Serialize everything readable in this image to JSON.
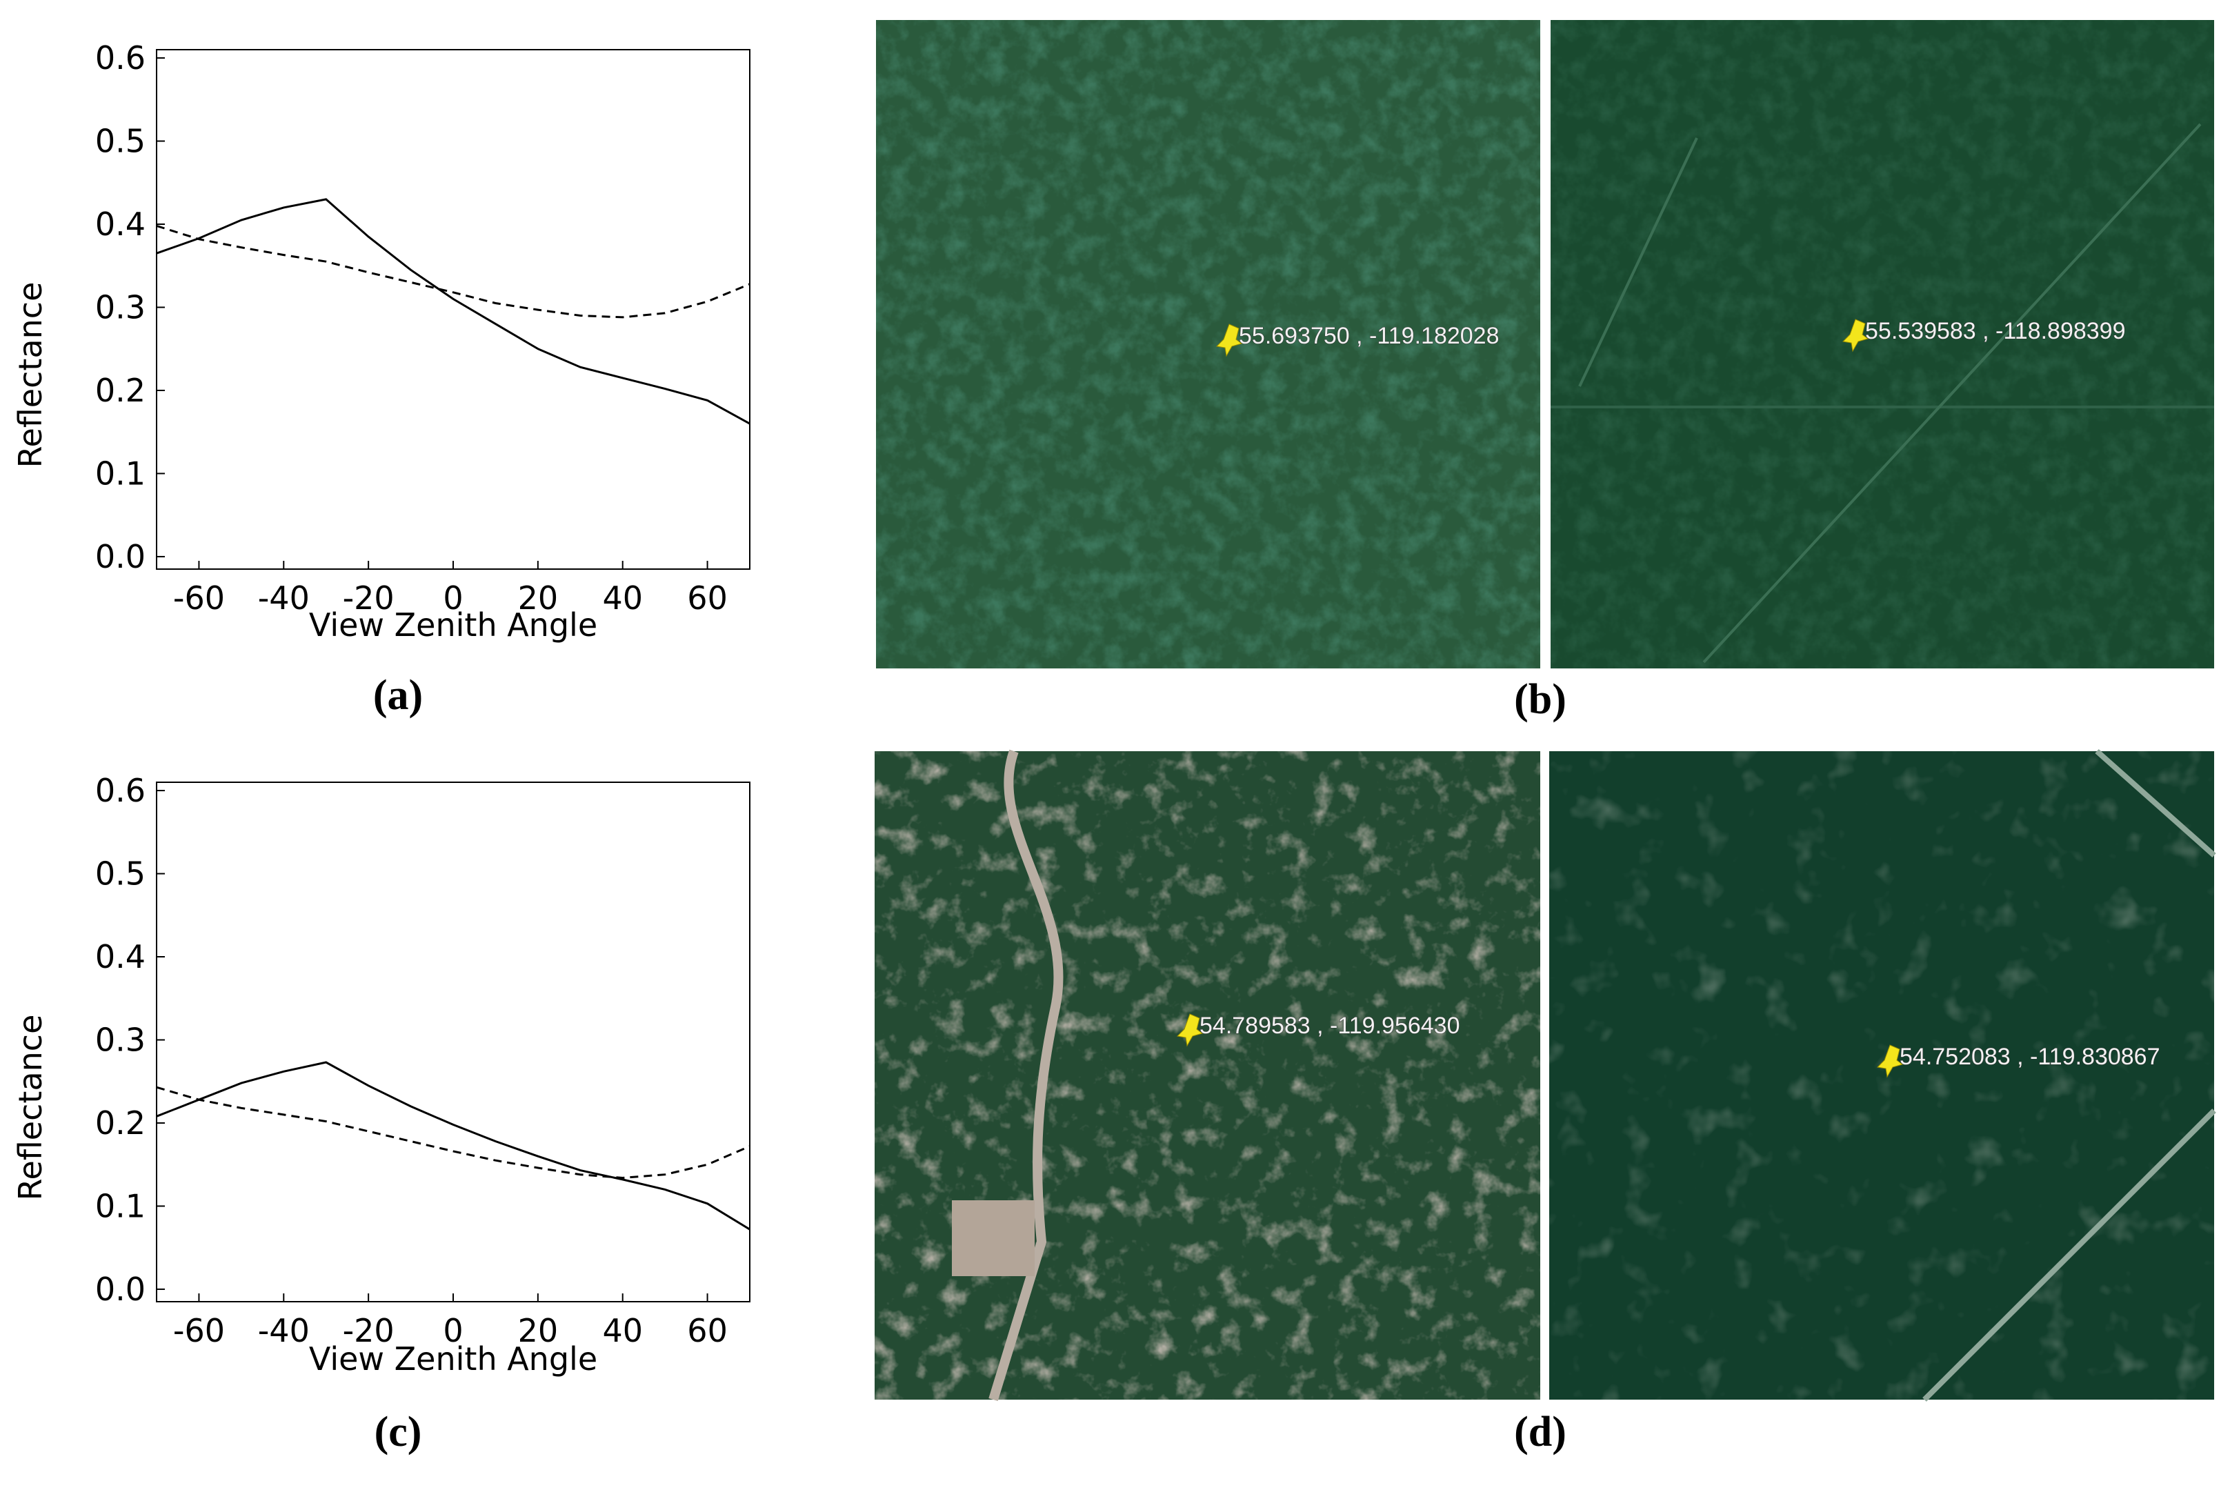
{
  "chart_data": [
    {
      "type": "line",
      "caption": "(a)",
      "xlabel": "View Zenith Angle",
      "ylabel": "Reflectance",
      "x": [
        -70,
        -60,
        -50,
        -40,
        -30,
        -20,
        -10,
        0,
        10,
        20,
        30,
        40,
        50,
        60,
        70
      ],
      "series": [
        {
          "color": "#000000",
          "line_style": "solid",
          "values": [
            0.365,
            0.383,
            0.405,
            0.42,
            0.43,
            0.385,
            0.345,
            0.31,
            0.28,
            0.25,
            0.228,
            0.215,
            0.202,
            0.188,
            0.16
          ]
        },
        {
          "color": "#000000",
          "line_style": "dashed",
          "values": [
            0.398,
            0.382,
            0.372,
            0.363,
            0.355,
            0.342,
            0.33,
            0.318,
            0.305,
            0.297,
            0.29,
            0.288,
            0.293,
            0.307,
            0.328
          ]
        }
      ],
      "xlim": [
        -70,
        70
      ],
      "xticks": [
        -60,
        -40,
        -20,
        0,
        20,
        40,
        60
      ],
      "ylim": [
        -0.015,
        0.61
      ],
      "yticks": [
        {
          "value": 0,
          "label": "0.0"
        },
        0.1,
        0.2,
        0.3,
        0.4,
        0.5,
        0.6
      ]
    },
    {
      "type": "line",
      "caption": "(c)",
      "xlabel": "View Zenith Angle",
      "ylabel": "Reflectance",
      "x": [
        -70,
        -60,
        -50,
        -40,
        -30,
        -20,
        -10,
        0,
        10,
        20,
        30,
        40,
        50,
        60,
        70
      ],
      "series": [
        {
          "color": "#000000",
          "line_style": "solid",
          "values": [
            0.208,
            0.228,
            0.248,
            0.262,
            0.273,
            0.245,
            0.22,
            0.198,
            0.178,
            0.16,
            0.143,
            0.132,
            0.12,
            0.103,
            0.072
          ]
        },
        {
          "color": "#000000",
          "line_style": "dashed",
          "values": [
            0.243,
            0.228,
            0.218,
            0.21,
            0.202,
            0.19,
            0.178,
            0.166,
            0.155,
            0.146,
            0.138,
            0.134,
            0.138,
            0.15,
            0.172
          ]
        }
      ],
      "xlim": [
        -70,
        70
      ],
      "xticks": [
        -60,
        -40,
        -20,
        0,
        20,
        40,
        60
      ],
      "ylim": [
        -0.015,
        0.61
      ],
      "yticks": [
        {
          "value": 0,
          "label": "0.0"
        },
        0.1,
        0.2,
        0.3,
        0.4,
        0.5,
        0.6
      ]
    }
  ],
  "images": [
    {
      "caption": "(b)",
      "pins": [
        "55.693750 , -119.182028",
        "55.539583 , -118.898399"
      ]
    },
    {
      "caption": "(d)",
      "pins": [
        "54.789583 , -119.956430",
        "54.752083 , -119.830867"
      ]
    }
  ]
}
